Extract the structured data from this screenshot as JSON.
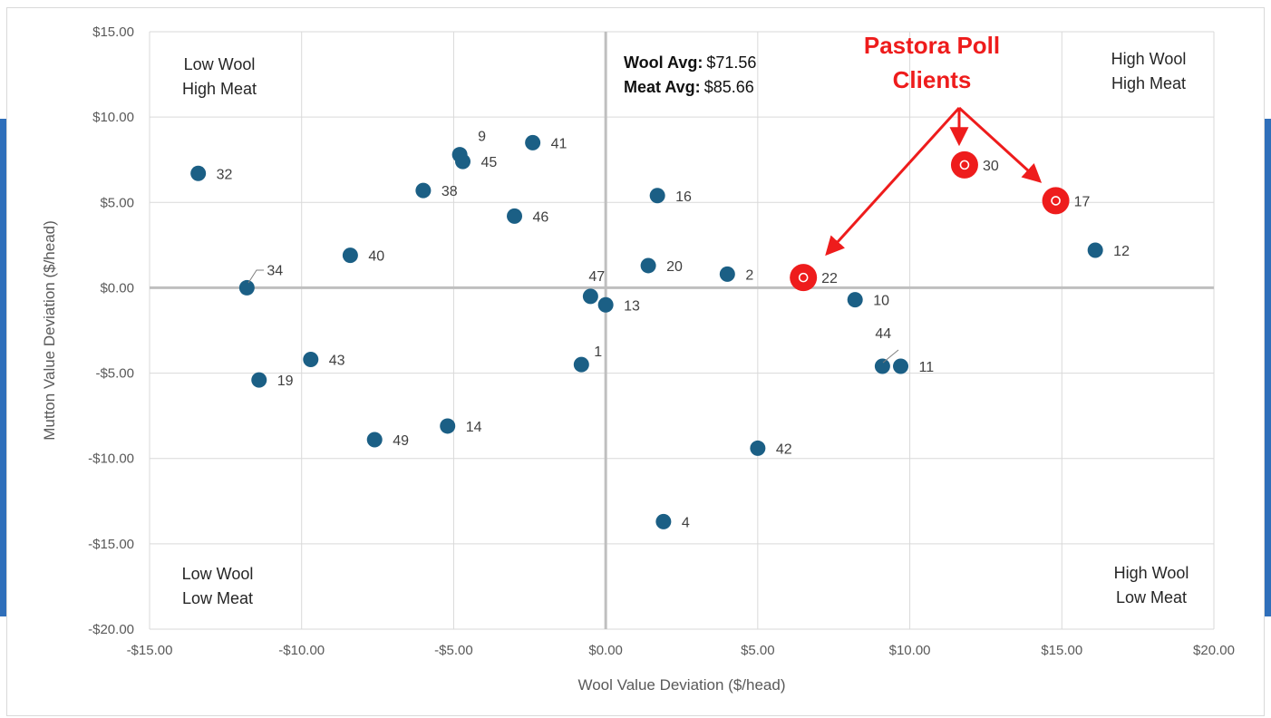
{
  "chart_data": {
    "type": "scatter",
    "title": "",
    "xlabel": "Wool Value Deviation ($/head)",
    "ylabel": "Mutton Value Deviation ($/head)",
    "xlim": [
      -15,
      20
    ],
    "ylim": [
      -20,
      15
    ],
    "x_ticks": [
      -15,
      -10,
      -5,
      0,
      5,
      10,
      15,
      20
    ],
    "y_ticks": [
      -20,
      -15,
      -10,
      -5,
      0,
      5,
      10,
      15
    ],
    "x_tick_labels": [
      "-$15.00",
      "-$10.00",
      "-$5.00",
      "$0.00",
      "$5.00",
      "$10.00",
      "$15.00",
      "$20.00"
    ],
    "y_tick_labels": [
      "-$20.00",
      "-$15.00",
      "-$10.00",
      "-$5.00",
      "$0.00",
      "$5.00",
      "$10.00",
      "$15.00"
    ],
    "grid": true,
    "legend": "none",
    "colors": {
      "point": "#1b5f85",
      "highlight": "#ee1c1c",
      "grid": "#d9d9d9",
      "zero_axis": "#bfbfbf"
    },
    "quadrant_labels": {
      "top_left": [
        "Low Wool",
        "High Meat"
      ],
      "top_right": [
        "High Wool",
        "High Meat"
      ],
      "bottom_left": [
        "Low Wool",
        "Low Meat"
      ],
      "bottom_right": [
        "High Wool",
        "Low Meat"
      ]
    },
    "averages": {
      "wool_label": "Wool Avg:",
      "wool_value": "$71.56",
      "meat_label": "Meat Avg:",
      "meat_value": "$85.66"
    },
    "callout": {
      "title_lines": [
        "Pastora Poll",
        "Clients"
      ],
      "targets": [
        "22",
        "30",
        "17"
      ]
    },
    "points": [
      {
        "label": "32",
        "x": -13.4,
        "y": 6.7
      },
      {
        "label": "9",
        "x": -4.8,
        "y": 7.8
      },
      {
        "label": "45",
        "x": -4.7,
        "y": 7.4
      },
      {
        "label": "41",
        "x": -2.4,
        "y": 8.5
      },
      {
        "label": "38",
        "x": -6.0,
        "y": 5.7
      },
      {
        "label": "46",
        "x": -3.0,
        "y": 4.2
      },
      {
        "label": "16",
        "x": 1.7,
        "y": 5.4
      },
      {
        "label": "40",
        "x": -8.4,
        "y": 1.9
      },
      {
        "label": "34",
        "x": -11.8,
        "y": 0.0
      },
      {
        "label": "20",
        "x": 1.4,
        "y": 1.3
      },
      {
        "label": "2",
        "x": 4.0,
        "y": 0.8
      },
      {
        "label": "47",
        "x": -0.5,
        "y": -0.5
      },
      {
        "label": "13",
        "x": 0.0,
        "y": -1.0
      },
      {
        "label": "10",
        "x": 8.2,
        "y": -0.7
      },
      {
        "label": "12",
        "x": 16.1,
        "y": 2.2
      },
      {
        "label": "43",
        "x": -9.7,
        "y": -4.2
      },
      {
        "label": "19",
        "x": -11.4,
        "y": -5.4
      },
      {
        "label": "1",
        "x": -0.8,
        "y": -4.5
      },
      {
        "label": "44",
        "x": 9.1,
        "y": -4.6
      },
      {
        "label": "11",
        "x": 9.7,
        "y": -4.6
      },
      {
        "label": "14",
        "x": -5.2,
        "y": -8.1
      },
      {
        "label": "49",
        "x": -7.6,
        "y": -8.9
      },
      {
        "label": "42",
        "x": 5.0,
        "y": -9.4
      },
      {
        "label": "4",
        "x": 1.9,
        "y": -13.7
      },
      {
        "label": "22",
        "x": 6.5,
        "y": 0.6,
        "highlight": true
      },
      {
        "label": "30",
        "x": 11.8,
        "y": 7.2,
        "highlight": true
      },
      {
        "label": "17",
        "x": 14.8,
        "y": 5.1,
        "highlight": true
      }
    ]
  }
}
